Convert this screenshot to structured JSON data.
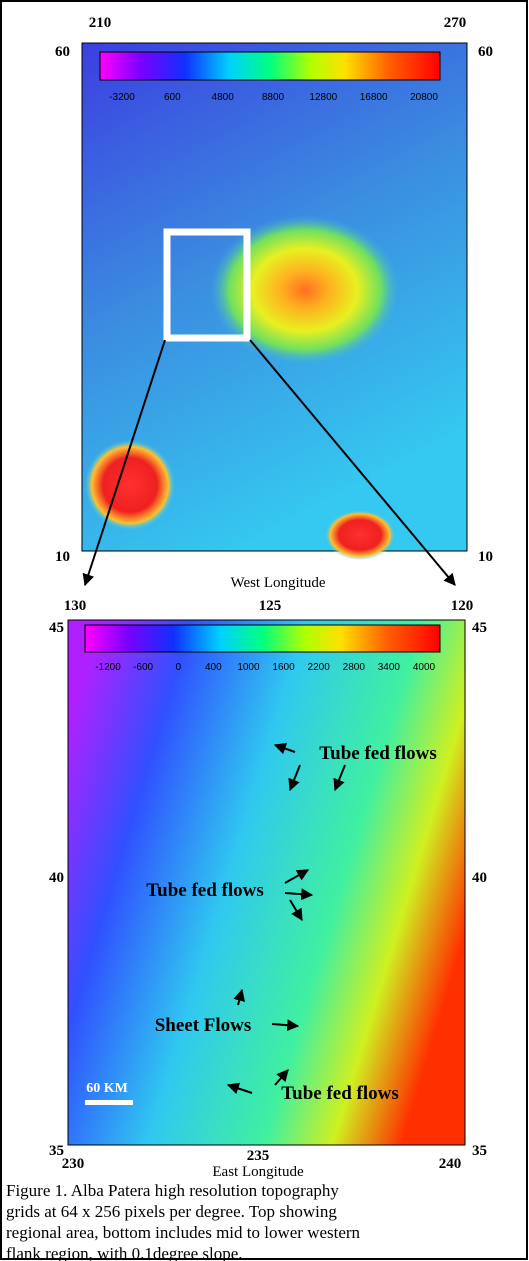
{
  "top_map": {
    "ticks": {
      "top_left": "210",
      "top_right": "270",
      "left_top": "60",
      "right_top": "60",
      "left_bottom": "10",
      "right_bottom": "10"
    },
    "colorbar_labels": [
      "-3200",
      "600",
      "4800",
      "8800",
      "12800",
      "16800",
      "20800"
    ],
    "axis_label": "West Longitude"
  },
  "bottom_map": {
    "top_ticks": [
      "130",
      "125",
      "120"
    ],
    "left_ticks": [
      "45",
      "40",
      "35"
    ],
    "right_ticks": [
      "45",
      "40",
      "35"
    ],
    "bottom_ticks": [
      "230",
      "235",
      "240"
    ],
    "colorbar_labels": [
      "-1200",
      "-600",
      "0",
      "400",
      "1000",
      "1600",
      "2200",
      "2800",
      "3400",
      "4000"
    ],
    "annotations": [
      "Tube fed flows",
      "Tube fed flows",
      "Sheet Flows",
      "Tube fed flows"
    ],
    "scale_label": "60 KM",
    "axis_label": "East Longitude"
  },
  "caption": [
    "Figure 1.  Alba Patera high resolution topography",
    "grids at 64 x 256 pixels per degree.  Top showing",
    "regional area, bottom includes mid to lower western",
    "flank region, with 0.1degree slope."
  ]
}
